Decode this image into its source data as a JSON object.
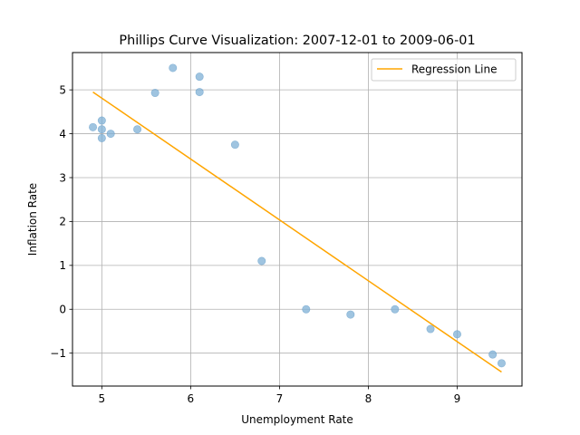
{
  "chart_data": {
    "type": "scatter",
    "title": "Phillips Curve Visualization: 2007-12-01 to 2009-06-01",
    "xlabel": "Unemployment Rate",
    "ylabel": "Inflation Rate",
    "xlim": [
      4.67,
      9.73
    ],
    "ylim": [
      -1.75,
      5.85
    ],
    "xticks": [
      5,
      6,
      7,
      8,
      9
    ],
    "yticks": [
      -1,
      0,
      1,
      2,
      3,
      4,
      5
    ],
    "xtick_labels": [
      "5",
      "6",
      "7",
      "8",
      "9"
    ],
    "ytick_labels": [
      "−1",
      "0",
      "1",
      "2",
      "3",
      "4",
      "5"
    ],
    "grid": true,
    "legend_position": "top-right",
    "series": [
      {
        "kind": "scatter",
        "color": "#7fb0d6",
        "points": [
          {
            "x": 4.9,
            "y": 4.15
          },
          {
            "x": 5.0,
            "y": 4.3
          },
          {
            "x": 5.0,
            "y": 4.1
          },
          {
            "x": 5.0,
            "y": 3.9
          },
          {
            "x": 5.1,
            "y": 4.0
          },
          {
            "x": 5.4,
            "y": 4.1
          },
          {
            "x": 5.6,
            "y": 4.93
          },
          {
            "x": 5.8,
            "y": 5.5
          },
          {
            "x": 6.1,
            "y": 5.3
          },
          {
            "x": 6.1,
            "y": 4.95
          },
          {
            "x": 6.5,
            "y": 3.75
          },
          {
            "x": 6.8,
            "y": 1.1
          },
          {
            "x": 7.3,
            "y": 0.0
          },
          {
            "x": 7.8,
            "y": -0.12
          },
          {
            "x": 8.3,
            "y": 0.0
          },
          {
            "x": 8.7,
            "y": -0.45
          },
          {
            "x": 9.0,
            "y": -0.57
          },
          {
            "x": 9.4,
            "y": -1.03
          },
          {
            "x": 9.5,
            "y": -1.23
          }
        ]
      },
      {
        "kind": "line",
        "name": "Regression Line",
        "color": "#ffa500",
        "points": [
          {
            "x": 4.9,
            "y": 4.95
          },
          {
            "x": 9.5,
            "y": -1.43
          }
        ]
      }
    ]
  }
}
